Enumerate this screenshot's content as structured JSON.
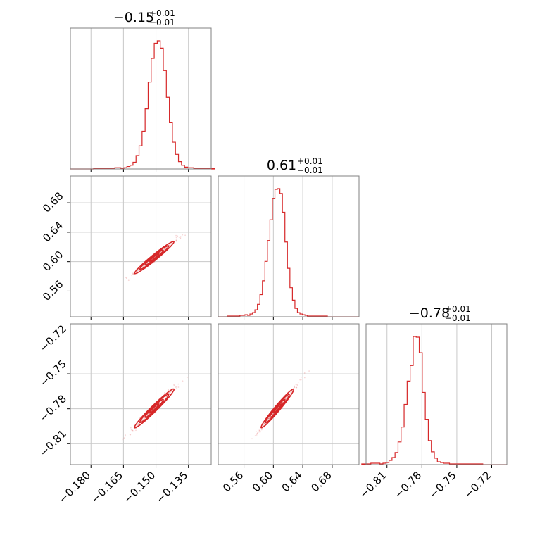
{
  "chart_data": {
    "type": "corner",
    "color": "#d62728",
    "params": [
      {
        "median": "−0.15",
        "upper": "+0.01",
        "lower": "−0.01",
        "range": [
          -0.1895,
          -0.1245
        ],
        "ticks": [
          -0.18,
          -0.165,
          -0.15,
          -0.135
        ],
        "tick_labels": [
          "−0.180",
          "−0.165",
          "−0.150",
          "−0.135"
        ],
        "center": -0.1508,
        "sigma": 0.0035,
        "counts": [
          1,
          1,
          1,
          1,
          1,
          1,
          1,
          2,
          2,
          1,
          2,
          4,
          6,
          11,
          22,
          38,
          62,
          99,
          143,
          182,
          207,
          211,
          199,
          162,
          118,
          76,
          44,
          24,
          12,
          6,
          3,
          2,
          2,
          1,
          1,
          1,
          1,
          1,
          1,
          1
        ]
      },
      {
        "median": "0.61",
        "upper": "+0.01",
        "lower": "−0.01",
        "range": [
          0.525,
          0.7165
        ],
        "ticks": [
          0.56,
          0.6,
          0.64,
          0.68
        ],
        "tick_labels": [
          "0.56",
          "0.60",
          "0.64",
          "0.68"
        ],
        "center": 0.6055,
        "sigma": 0.0085,
        "counts": [
          1,
          1,
          1,
          1,
          1,
          2,
          2,
          3,
          2,
          4,
          6,
          10,
          18,
          32,
          52,
          80,
          110,
          140,
          171,
          184,
          185,
          178,
          151,
          108,
          70,
          42,
          24,
          12,
          6,
          4,
          3,
          2,
          1,
          1,
          1,
          1,
          1,
          1,
          1,
          1
        ]
      },
      {
        "median": "−0.78",
        "upper": "+0.01",
        "lower": "−0.01",
        "range": [
          -0.828,
          -0.707
        ],
        "ticks": [
          -0.81,
          -0.78,
          -0.75,
          -0.72
        ],
        "tick_labels": [
          "−0.81",
          "−0.78",
          "−0.75",
          "−0.72"
        ],
        "center": -0.7797,
        "sigma": 0.0065,
        "counts": [
          1,
          1,
          1,
          2,
          2,
          2,
          1,
          2,
          3,
          6,
          10,
          17,
          32,
          53,
          85,
          118,
          140,
          181,
          180,
          158,
          102,
          64,
          34,
          18,
          9,
          4,
          3,
          2,
          2,
          1,
          1,
          1,
          1,
          1,
          1,
          1,
          1,
          1,
          1,
          1
        ]
      }
    ],
    "pairs": [
      {
        "x": 0,
        "y": 1,
        "y_ticks": [
          0.56,
          0.6,
          0.64,
          0.68
        ],
        "y_tick_labels": [
          "0.56",
          "0.60",
          "0.64",
          "0.68"
        ]
      },
      {
        "x": 0,
        "y": 2,
        "y_ticks": [
          -0.81,
          -0.78,
          -0.75,
          -0.72
        ],
        "y_tick_labels": [
          "−0.81",
          "−0.78",
          "−0.75",
          "−0.72"
        ]
      },
      {
        "x": 1,
        "y": 2
      }
    ]
  }
}
